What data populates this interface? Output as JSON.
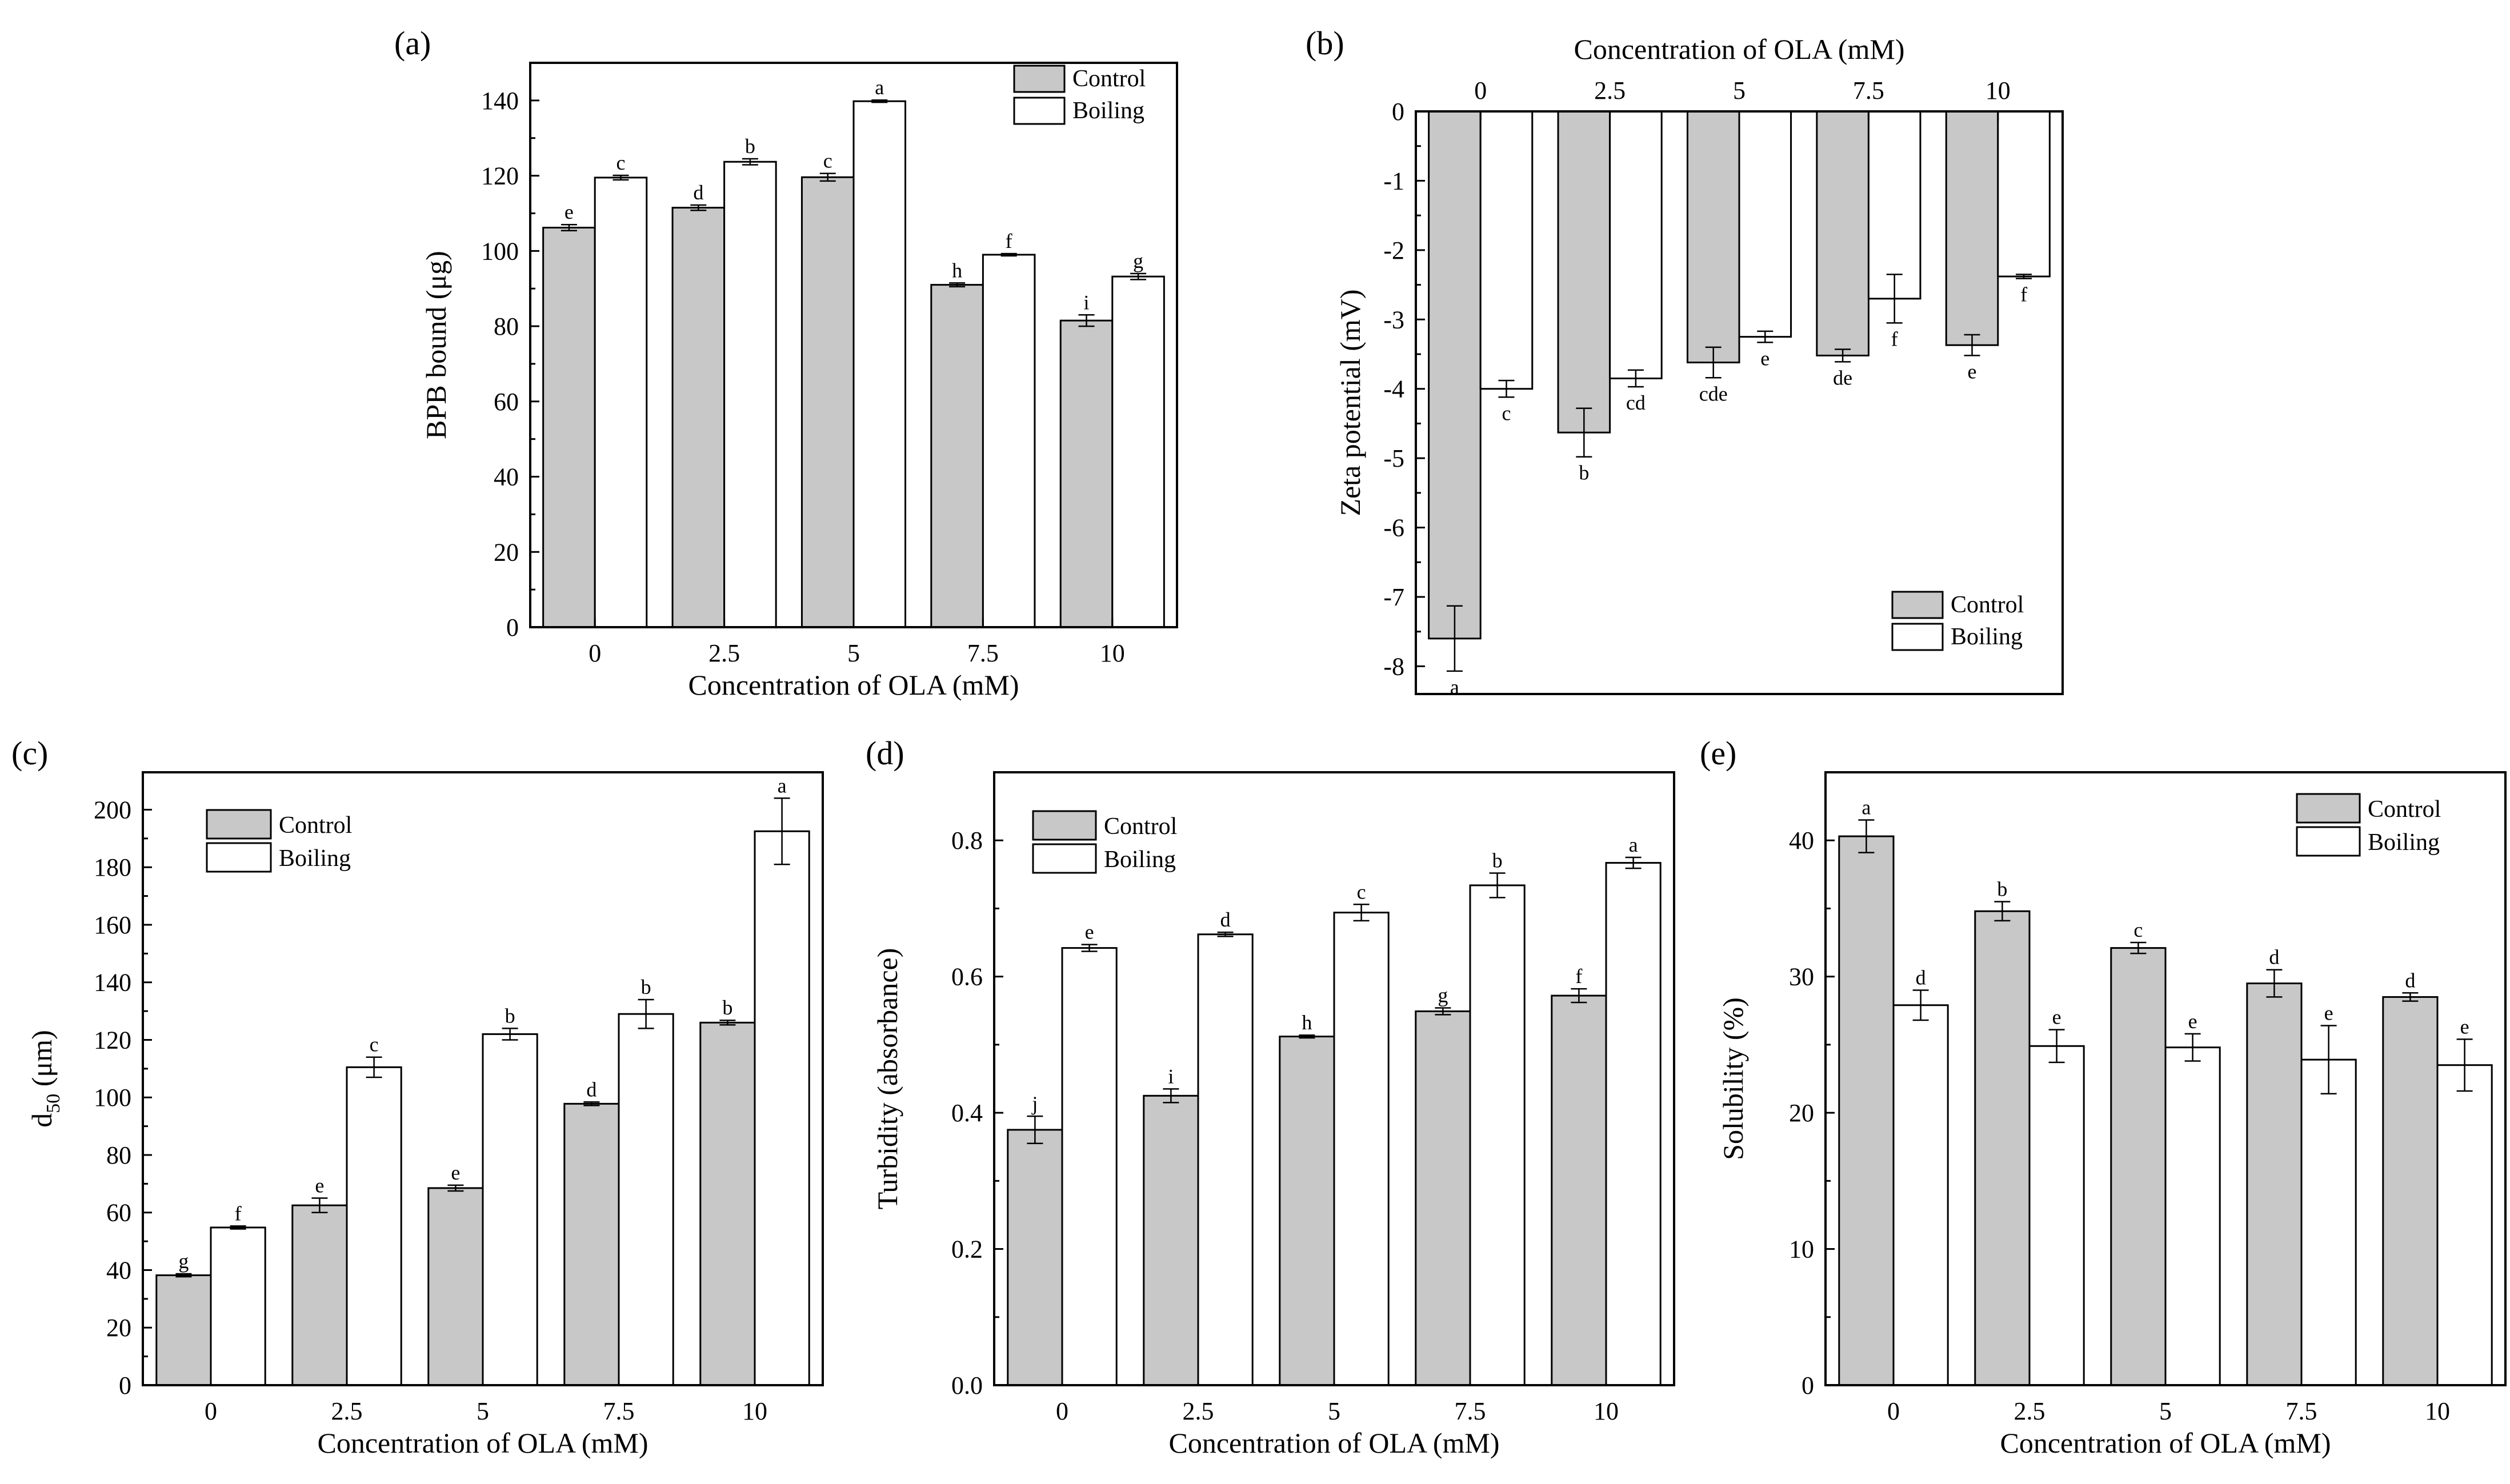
{
  "colors": {
    "control": "#c8c8c8",
    "boiling": "#ffffff",
    "stroke": "#000000"
  },
  "chart_data": [
    {
      "panel": "(a)",
      "type": "bar",
      "categories": [
        "0",
        "2.5",
        "5",
        "7.5",
        "10"
      ],
      "xlabel": "Concentration of OLA (mM)",
      "ylabel": "BPB bound (μg)",
      "ylim": [
        0,
        150
      ],
      "yticks": [
        0,
        20,
        40,
        60,
        80,
        100,
        120,
        140
      ],
      "ytick_labels": [
        "0",
        "20",
        "40",
        "60",
        "80",
        "100",
        "120",
        "140"
      ],
      "legend": [
        "Control",
        "Boiling"
      ],
      "series": [
        {
          "name": "Control",
          "values": [
            106.2,
            111.5,
            119.6,
            91.0,
            81.5
          ],
          "errors": [
            0.8,
            0.7,
            1.0,
            0.5,
            1.5
          ],
          "letters": [
            "e",
            "d",
            "c",
            "h",
            "i"
          ]
        },
        {
          "name": "Boiling",
          "values": [
            119.5,
            123.7,
            139.8,
            99.0,
            93.2
          ],
          "errors": [
            0.6,
            0.8,
            0.3,
            0.3,
            0.8
          ],
          "letters": [
            "c",
            "b",
            "a",
            "f",
            "g"
          ]
        }
      ]
    },
    {
      "panel": "(b)",
      "type": "bar",
      "categories": [
        "0",
        "2.5",
        "5",
        "7.5",
        "10"
      ],
      "xlabel": "Concentration of OLA (mM)",
      "ylabel": "Zeta potential (mV)",
      "ylim": [
        -8.4,
        0
      ],
      "yticks": [
        0,
        -1,
        -2,
        -3,
        -4,
        -5,
        -6,
        -7,
        -8
      ],
      "ytick_labels": [
        "0",
        "-1",
        "-2",
        "-3",
        "-4",
        "-5",
        "-6",
        "-7",
        "-8"
      ],
      "legend": [
        "Control",
        "Boiling"
      ],
      "series": [
        {
          "name": "Control",
          "values": [
            -7.6,
            -4.63,
            -3.62,
            -3.52,
            -3.37
          ],
          "errors": [
            0.47,
            0.35,
            0.22,
            0.09,
            0.15
          ],
          "letters": [
            "a",
            "b",
            "cde",
            "de",
            "e"
          ]
        },
        {
          "name": "Boiling",
          "values": [
            -4.0,
            -3.85,
            -3.25,
            -2.7,
            -2.38
          ],
          "errors": [
            0.12,
            0.12,
            0.08,
            0.35,
            0.03
          ],
          "letters": [
            "c",
            "cd",
            "e",
            "f",
            "f"
          ]
        }
      ]
    },
    {
      "panel": "(c)",
      "type": "bar",
      "categories": [
        "0",
        "2.5",
        "5",
        "7.5",
        "10"
      ],
      "xlabel": "Concentration of OLA (mM)",
      "ylabel_main": "d",
      "ylabel_sub": "50",
      "ylabel_unit": " (μm)",
      "ylim": [
        0,
        213
      ],
      "yticks": [
        0,
        20,
        40,
        60,
        80,
        100,
        120,
        140,
        160,
        180,
        200
      ],
      "ytick_labels": [
        "0",
        "20",
        "40",
        "60",
        "80",
        "100",
        "120",
        "140",
        "160",
        "180",
        "200"
      ],
      "legend": [
        "Control",
        "Boiling"
      ],
      "series": [
        {
          "name": "Control",
          "values": [
            38.2,
            62.5,
            68.5,
            97.8,
            126.0
          ],
          "errors": [
            0.5,
            2.5,
            1.0,
            0.6,
            0.8
          ],
          "letters": [
            "g",
            "e",
            "e",
            "d",
            "b"
          ]
        },
        {
          "name": "Boiling",
          "values": [
            54.8,
            110.5,
            122.0,
            129.0,
            192.5
          ],
          "errors": [
            0.5,
            3.5,
            2.0,
            5.0,
            11.5
          ],
          "letters": [
            "f",
            "c",
            "b",
            "b",
            "a"
          ]
        }
      ]
    },
    {
      "panel": "(d)",
      "type": "bar",
      "categories": [
        "0",
        "2.5",
        "5",
        "7.5",
        "10"
      ],
      "xlabel": "Concentration of OLA (mM)",
      "ylabel": "Turbidity (absorbance)",
      "ylim": [
        0,
        0.9
      ],
      "yticks": [
        0,
        0.2,
        0.4,
        0.6,
        0.8
      ],
      "ytick_labels": [
        "0.0",
        "0.2",
        "0.4",
        "0.6",
        "0.8"
      ],
      "legend": [
        "Control",
        "Boiling"
      ],
      "series": [
        {
          "name": "Control",
          "values": [
            0.375,
            0.425,
            0.512,
            0.549,
            0.572
          ],
          "errors": [
            0.02,
            0.01,
            0.002,
            0.005,
            0.01
          ],
          "letters": [
            "j",
            "i",
            "h",
            "g",
            "f"
          ]
        },
        {
          "name": "Boiling",
          "values": [
            0.642,
            0.662,
            0.694,
            0.734,
            0.767
          ],
          "errors": [
            0.005,
            0.003,
            0.012,
            0.018,
            0.008
          ],
          "letters": [
            "e",
            "d",
            "c",
            "b",
            "a"
          ]
        }
      ]
    },
    {
      "panel": "(e)",
      "type": "bar",
      "categories": [
        "0",
        "2.5",
        "5",
        "7.5",
        "10"
      ],
      "xlabel": "Concentration of OLA (mM)",
      "ylabel": "Solubility (%)",
      "ylim": [
        0,
        45
      ],
      "yticks": [
        0,
        10,
        20,
        30,
        40
      ],
      "ytick_labels": [
        "0",
        "10",
        "20",
        "30",
        "40"
      ],
      "legend": [
        "Control",
        "Boiling"
      ],
      "series": [
        {
          "name": "Control",
          "values": [
            40.3,
            34.8,
            32.1,
            29.5,
            28.5
          ],
          "errors": [
            1.2,
            0.7,
            0.4,
            1.0,
            0.3
          ],
          "letters": [
            "a",
            "b",
            "c",
            "d",
            "d"
          ]
        },
        {
          "name": "Boiling",
          "values": [
            27.9,
            24.9,
            24.8,
            23.9,
            23.5
          ],
          "errors": [
            1.1,
            1.2,
            1.0,
            2.5,
            1.9
          ],
          "letters": [
            "d",
            "e",
            "e",
            "e",
            "e"
          ]
        }
      ]
    }
  ]
}
